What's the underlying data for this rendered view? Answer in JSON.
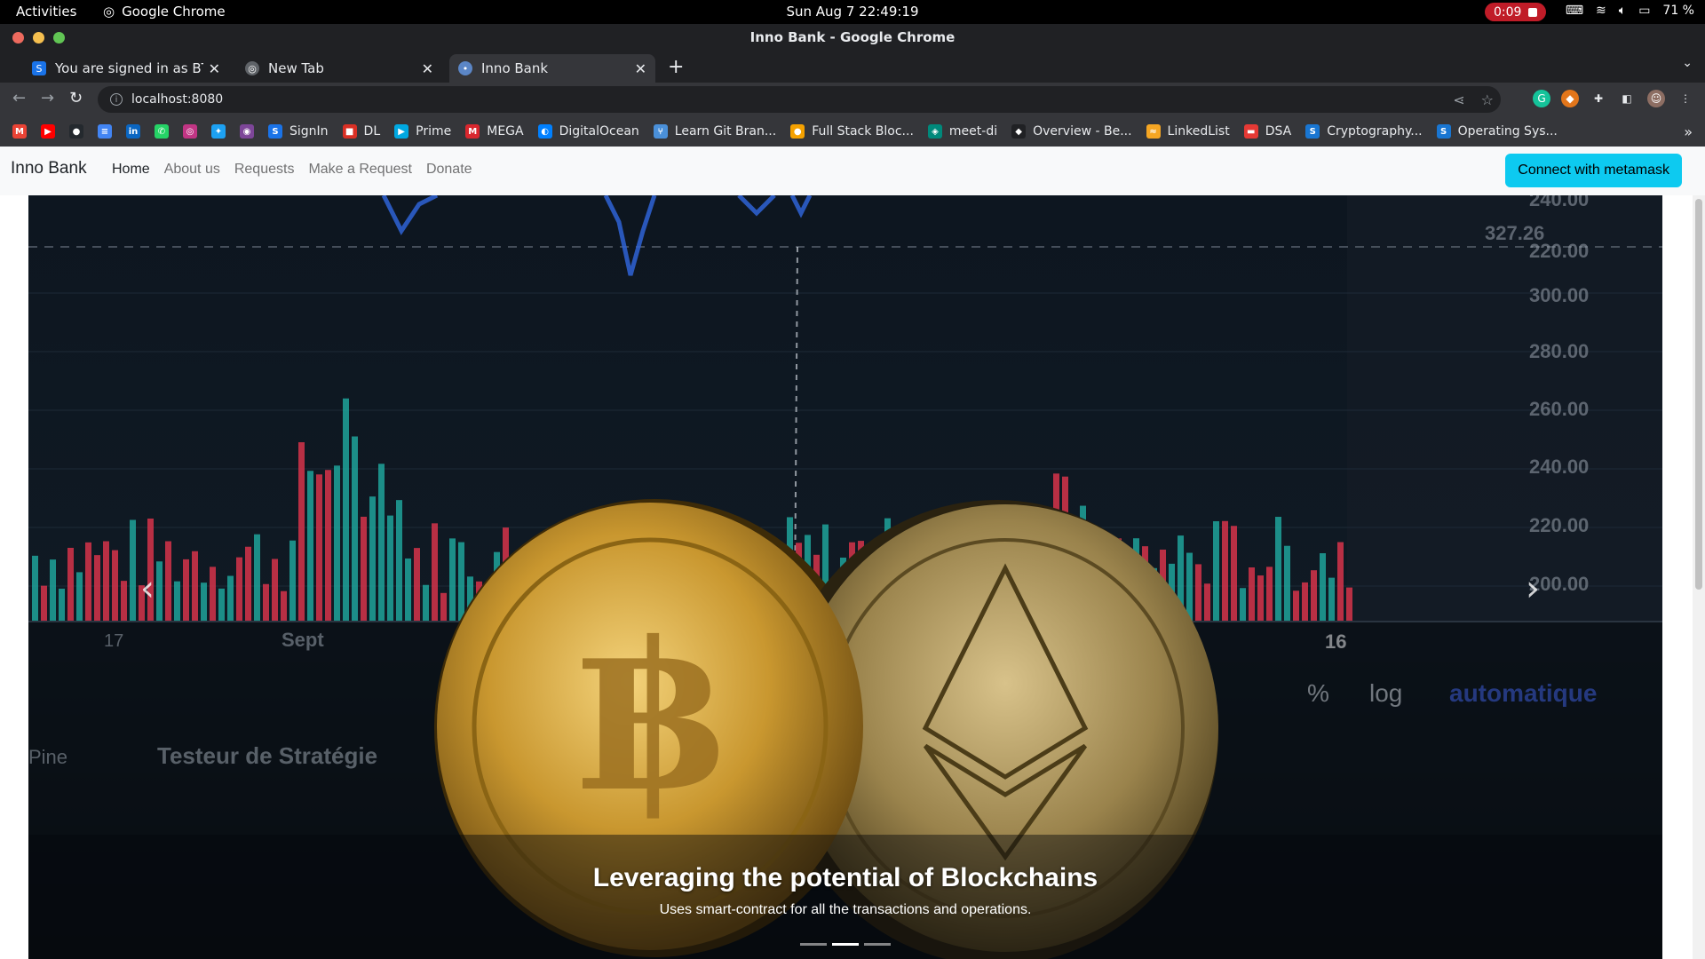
{
  "os_bar": {
    "activities": "Activities",
    "app_name": "Google Chrome",
    "clock": "Sun Aug 7  22:49:19",
    "recording": "0:09",
    "battery": "71 %"
  },
  "window": {
    "title": "Inno Bank - Google Chrome"
  },
  "tabs": [
    {
      "label": "You are signed in as BTEC",
      "favicon": "S"
    },
    {
      "label": "New Tab",
      "favicon": "chrome"
    },
    {
      "label": "Inno Bank",
      "favicon": "dot"
    }
  ],
  "address_bar": {
    "url": "localhost:8080"
  },
  "bookmarks": [
    {
      "label": "",
      "icon": "gmail-icon",
      "color": "#ea4335",
      "glyph": "M"
    },
    {
      "label": "",
      "icon": "youtube-icon",
      "color": "#ff0000",
      "glyph": "▶"
    },
    {
      "label": "",
      "icon": "github-icon",
      "color": "#24292e",
      "glyph": "●"
    },
    {
      "label": "",
      "icon": "docs-icon",
      "color": "#4285f4",
      "glyph": "≡"
    },
    {
      "label": "",
      "icon": "linkedin-icon",
      "color": "#0a66c2",
      "glyph": "in"
    },
    {
      "label": "",
      "icon": "whatsapp-icon",
      "color": "#25d366",
      "glyph": "✆"
    },
    {
      "label": "",
      "icon": "instagram-icon",
      "color": "#c13584",
      "glyph": "◎"
    },
    {
      "label": "",
      "icon": "twitter-icon",
      "color": "#1da1f2",
      "glyph": "✦"
    },
    {
      "label": "",
      "icon": "tor-icon",
      "color": "#7d4698",
      "glyph": "◉"
    },
    {
      "label": "SignIn",
      "icon": "s-icon",
      "color": "#1a73e8",
      "glyph": "S"
    },
    {
      "label": "DL",
      "icon": "box-icon",
      "color": "#d93025",
      "glyph": "■"
    },
    {
      "label": "Prime",
      "icon": "prime-icon",
      "color": "#00a8e1",
      "glyph": "▶"
    },
    {
      "label": "MEGA",
      "icon": "mega-icon",
      "color": "#d9272e",
      "glyph": "M"
    },
    {
      "label": "DigitalOcean",
      "icon": "digitalocean-icon",
      "color": "#0080ff",
      "glyph": "◐"
    },
    {
      "label": "Learn Git Bran...",
      "icon": "git-icon",
      "color": "#4a90d9",
      "glyph": "⑂"
    },
    {
      "label": "Full Stack Bloc...",
      "icon": "bloc-icon",
      "color": "#f4a100",
      "glyph": "●"
    },
    {
      "label": "meet-di",
      "icon": "meet-icon",
      "color": "#00897b",
      "glyph": "◈"
    },
    {
      "label": "Overview - Be...",
      "icon": "overview-icon",
      "color": "#202124",
      "glyph": "◆"
    },
    {
      "label": "LinkedList",
      "icon": "linkedlist-icon",
      "color": "#f5a623",
      "glyph": "≈"
    },
    {
      "label": "DSA",
      "icon": "dsa-icon",
      "color": "#e53935",
      "glyph": "▬"
    },
    {
      "label": "Cryptography...",
      "icon": "crypto-icon",
      "color": "#1976d2",
      "glyph": "S"
    },
    {
      "label": "Operating Sys...",
      "icon": "os-icon",
      "color": "#1976d2",
      "glyph": "S"
    }
  ],
  "app": {
    "brand": "Inno Bank",
    "nav": [
      {
        "label": "Home",
        "active": true
      },
      {
        "label": "About us",
        "active": false
      },
      {
        "label": "Requests",
        "active": false
      },
      {
        "label": "Make a Request",
        "active": false
      },
      {
        "label": "Donate",
        "active": false
      }
    ],
    "connect_button": "Connect with metamask"
  },
  "carousel": {
    "caption_title": "Leveraging the potential of Blockchains",
    "caption_text": "Uses smart-contract for all the transactions and operations.",
    "slide_count": 3,
    "active_slide": 2,
    "background_text": {
      "price_ticks": [
        "240.00",
        "220.00",
        "300.00",
        "280.00",
        "260.00",
        "240.00",
        "220.00",
        "200.00"
      ],
      "price_tag": "327.26",
      "date_labels": [
        "17",
        "Sept",
        "16"
      ],
      "toolbar_items": [
        "%",
        "log",
        "automatique"
      ],
      "strategy_label": "Testeur de Stratégie",
      "pine_label": "Pine"
    }
  },
  "colors": {
    "accent_button": "#0dcaf0",
    "navbar_bg": "#f8f9fa",
    "chart_up": "#1fa39a",
    "chart_down": "#d6344a",
    "coin_gold": "#c9a14a"
  }
}
